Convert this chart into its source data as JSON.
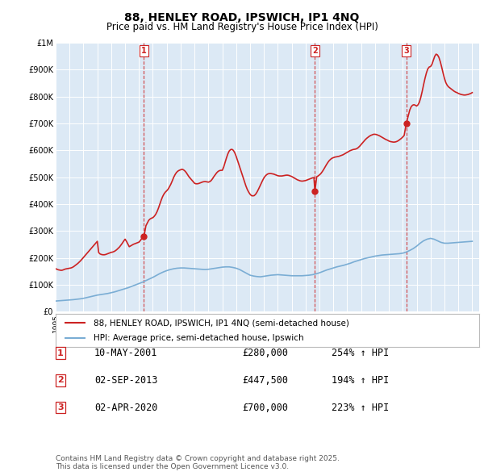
{
  "title": "88, HENLEY ROAD, IPSWICH, IP1 4NQ",
  "subtitle": "Price paid vs. HM Land Registry's House Price Index (HPI)",
  "legend_line1": "88, HENLEY ROAD, IPSWICH, IP1 4NQ (semi-detached house)",
  "legend_line2": "HPI: Average price, semi-detached house, Ipswich",
  "footer": "Contains HM Land Registry data © Crown copyright and database right 2025.\nThis data is licensed under the Open Government Licence v3.0.",
  "transactions": [
    {
      "num": 1,
      "date": "10-MAY-2001",
      "x": 2001.36,
      "price": 280000,
      "label": "254% ↑ HPI"
    },
    {
      "num": 2,
      "date": "02-SEP-2013",
      "x": 2013.67,
      "price": 447500,
      "label": "194% ↑ HPI"
    },
    {
      "num": 3,
      "date": "02-APR-2020",
      "x": 2020.25,
      "price": 700000,
      "label": "223% ↑ HPI"
    }
  ],
  "hpi_line_color": "#7aadd4",
  "price_line_color": "#cc2222",
  "dashed_vline_color": "#cc2222",
  "plot_bg_color": "#dce9f5",
  "ylim": [
    0,
    1000000
  ],
  "xlim_start": 1995,
  "xlim_end": 2025.5,
  "hpi_data_x": [
    1995.0,
    1995.25,
    1995.5,
    1995.75,
    1996.0,
    1996.25,
    1996.5,
    1996.75,
    1997.0,
    1997.25,
    1997.5,
    1997.75,
    1998.0,
    1998.25,
    1998.5,
    1998.75,
    1999.0,
    1999.25,
    1999.5,
    1999.75,
    2000.0,
    2000.25,
    2000.5,
    2000.75,
    2001.0,
    2001.25,
    2001.5,
    2001.75,
    2002.0,
    2002.25,
    2002.5,
    2002.75,
    2003.0,
    2003.25,
    2003.5,
    2003.75,
    2004.0,
    2004.25,
    2004.5,
    2004.75,
    2005.0,
    2005.25,
    2005.5,
    2005.75,
    2006.0,
    2006.25,
    2006.5,
    2006.75,
    2007.0,
    2007.25,
    2007.5,
    2007.75,
    2008.0,
    2008.25,
    2008.5,
    2008.75,
    2009.0,
    2009.25,
    2009.5,
    2009.75,
    2010.0,
    2010.25,
    2010.5,
    2010.75,
    2011.0,
    2011.25,
    2011.5,
    2011.75,
    2012.0,
    2012.25,
    2012.5,
    2012.75,
    2013.0,
    2013.25,
    2013.5,
    2013.75,
    2014.0,
    2014.25,
    2014.5,
    2014.75,
    2015.0,
    2015.25,
    2015.5,
    2015.75,
    2016.0,
    2016.25,
    2016.5,
    2016.75,
    2017.0,
    2017.25,
    2017.5,
    2017.75,
    2018.0,
    2018.25,
    2018.5,
    2018.75,
    2019.0,
    2019.25,
    2019.5,
    2019.75,
    2020.0,
    2020.25,
    2020.5,
    2020.75,
    2021.0,
    2021.25,
    2021.5,
    2021.75,
    2022.0,
    2022.25,
    2022.5,
    2022.75,
    2023.0,
    2023.25,
    2023.5,
    2023.75,
    2024.0,
    2024.25,
    2024.5,
    2024.75,
    2025.0
  ],
  "hpi_data_y": [
    40000,
    41000,
    42000,
    43000,
    44000,
    45000,
    46500,
    48000,
    50000,
    53000,
    56000,
    59000,
    62000,
    64000,
    66000,
    68000,
    71000,
    74000,
    78000,
    82000,
    86000,
    90000,
    95000,
    100000,
    105000,
    110000,
    116000,
    122000,
    128000,
    135000,
    142000,
    148000,
    153000,
    157000,
    160000,
    162000,
    163000,
    163000,
    162000,
    161000,
    160000,
    159000,
    158000,
    157000,
    158000,
    160000,
    162000,
    164000,
    166000,
    167000,
    167000,
    165000,
    162000,
    157000,
    150000,
    143000,
    136000,
    133000,
    131000,
    130000,
    132000,
    134000,
    136000,
    137000,
    138000,
    137000,
    136000,
    135000,
    134000,
    134000,
    134000,
    134000,
    135000,
    136000,
    138000,
    141000,
    145000,
    150000,
    155000,
    159000,
    163000,
    167000,
    170000,
    173000,
    177000,
    181000,
    186000,
    190000,
    194000,
    198000,
    201000,
    204000,
    207000,
    209000,
    211000,
    212000,
    213000,
    214000,
    215000,
    216000,
    218000,
    222000,
    228000,
    235000,
    244000,
    255000,
    264000,
    270000,
    273000,
    270000,
    264000,
    258000,
    255000,
    255000,
    256000,
    257000,
    258000,
    259000,
    260000,
    261000,
    262000
  ],
  "price_data_x": [
    1995.0,
    1995.1,
    1995.2,
    1995.3,
    1995.4,
    1995.5,
    1995.6,
    1995.7,
    1995.8,
    1995.9,
    1996.0,
    1996.1,
    1996.2,
    1996.3,
    1996.4,
    1996.5,
    1996.6,
    1996.7,
    1996.8,
    1996.9,
    1997.0,
    1997.1,
    1997.2,
    1997.3,
    1997.4,
    1997.5,
    1997.6,
    1997.7,
    1997.8,
    1997.9,
    1998.0,
    1998.1,
    1998.2,
    1998.3,
    1998.4,
    1998.5,
    1998.6,
    1998.7,
    1998.8,
    1998.9,
    1999.0,
    1999.1,
    1999.2,
    1999.3,
    1999.4,
    1999.5,
    1999.6,
    1999.7,
    1999.8,
    1999.9,
    2000.0,
    2000.1,
    2000.2,
    2000.3,
    2000.4,
    2000.5,
    2000.6,
    2000.7,
    2000.8,
    2000.9,
    2001.0,
    2001.1,
    2001.2,
    2001.36,
    2001.5,
    2001.6,
    2001.7,
    2001.8,
    2001.9,
    2002.0,
    2002.1,
    2002.2,
    2002.3,
    2002.4,
    2002.5,
    2002.6,
    2002.7,
    2002.8,
    2002.9,
    2003.0,
    2003.1,
    2003.2,
    2003.3,
    2003.4,
    2003.5,
    2003.6,
    2003.7,
    2003.8,
    2003.9,
    2004.0,
    2004.1,
    2004.2,
    2004.3,
    2004.4,
    2004.5,
    2004.6,
    2004.7,
    2004.8,
    2004.9,
    2005.0,
    2005.1,
    2005.2,
    2005.3,
    2005.4,
    2005.5,
    2005.6,
    2005.7,
    2005.8,
    2005.9,
    2006.0,
    2006.1,
    2006.2,
    2006.3,
    2006.4,
    2006.5,
    2006.6,
    2006.7,
    2006.8,
    2006.9,
    2007.0,
    2007.1,
    2007.2,
    2007.3,
    2007.4,
    2007.5,
    2007.6,
    2007.7,
    2007.8,
    2007.9,
    2008.0,
    2008.1,
    2008.2,
    2008.3,
    2008.4,
    2008.5,
    2008.6,
    2008.7,
    2008.8,
    2008.9,
    2009.0,
    2009.1,
    2009.2,
    2009.3,
    2009.4,
    2009.5,
    2009.6,
    2009.7,
    2009.8,
    2009.9,
    2010.0,
    2010.1,
    2010.2,
    2010.3,
    2010.4,
    2010.5,
    2010.6,
    2010.7,
    2010.8,
    2010.9,
    2011.0,
    2011.1,
    2011.2,
    2011.3,
    2011.4,
    2011.5,
    2011.6,
    2011.7,
    2011.8,
    2011.9,
    2012.0,
    2012.1,
    2012.2,
    2012.3,
    2012.4,
    2012.5,
    2012.6,
    2012.7,
    2012.8,
    2012.9,
    2013.0,
    2013.1,
    2013.2,
    2013.3,
    2013.4,
    2013.5,
    2013.6,
    2013.67,
    2013.8,
    2013.9,
    2014.0,
    2014.1,
    2014.2,
    2014.3,
    2014.4,
    2014.5,
    2014.6,
    2014.7,
    2014.8,
    2014.9,
    2015.0,
    2015.1,
    2015.2,
    2015.3,
    2015.4,
    2015.5,
    2015.6,
    2015.7,
    2015.8,
    2015.9,
    2016.0,
    2016.1,
    2016.2,
    2016.3,
    2016.4,
    2016.5,
    2016.6,
    2016.7,
    2016.8,
    2016.9,
    2017.0,
    2017.1,
    2017.2,
    2017.3,
    2017.4,
    2017.5,
    2017.6,
    2017.7,
    2017.8,
    2017.9,
    2018.0,
    2018.1,
    2018.2,
    2018.3,
    2018.4,
    2018.5,
    2018.6,
    2018.7,
    2018.8,
    2018.9,
    2019.0,
    2019.1,
    2019.2,
    2019.3,
    2019.4,
    2019.5,
    2019.6,
    2019.7,
    2019.8,
    2019.9,
    2020.0,
    2020.1,
    2020.25,
    2020.4,
    2020.5,
    2020.6,
    2020.7,
    2020.8,
    2020.9,
    2021.0,
    2021.1,
    2021.2,
    2021.3,
    2021.4,
    2021.5,
    2021.6,
    2021.7,
    2021.8,
    2021.9,
    2022.0,
    2022.1,
    2022.2,
    2022.3,
    2022.4,
    2022.5,
    2022.6,
    2022.7,
    2022.8,
    2022.9,
    2023.0,
    2023.1,
    2023.2,
    2023.3,
    2023.4,
    2023.5,
    2023.6,
    2023.7,
    2023.8,
    2023.9,
    2024.0,
    2024.1,
    2024.2,
    2024.3,
    2024.4,
    2024.5,
    2024.6,
    2024.7,
    2024.8,
    2024.9,
    2025.0
  ],
  "price_data_y": [
    160000,
    158000,
    156000,
    155000,
    154000,
    155000,
    157000,
    159000,
    160000,
    161000,
    162000,
    163000,
    165000,
    168000,
    172000,
    176000,
    180000,
    185000,
    190000,
    196000,
    202000,
    208000,
    214000,
    220000,
    226000,
    232000,
    238000,
    244000,
    250000,
    256000,
    262000,
    220000,
    215000,
    213000,
    212000,
    212000,
    213000,
    215000,
    217000,
    219000,
    221000,
    222000,
    224000,
    227000,
    231000,
    236000,
    241000,
    248000,
    255000,
    263000,
    270000,
    262000,
    252000,
    242000,
    245000,
    248000,
    251000,
    253000,
    255000,
    257000,
    259000,
    265000,
    272000,
    280000,
    320000,
    330000,
    340000,
    345000,
    348000,
    350000,
    355000,
    362000,
    372000,
    385000,
    400000,
    415000,
    428000,
    438000,
    445000,
    450000,
    456000,
    465000,
    475000,
    487000,
    500000,
    510000,
    518000,
    523000,
    526000,
    528000,
    530000,
    528000,
    524000,
    518000,
    510000,
    502000,
    496000,
    490000,
    484000,
    478000,
    476000,
    476000,
    477000,
    479000,
    481000,
    483000,
    484000,
    484000,
    483000,
    482000,
    484000,
    488000,
    495000,
    503000,
    510000,
    517000,
    522000,
    525000,
    526000,
    526000,
    538000,
    555000,
    572000,
    587000,
    598000,
    603000,
    604000,
    600000,
    591000,
    578000,
    563000,
    547000,
    531000,
    516000,
    500000,
    484000,
    468000,
    455000,
    445000,
    437000,
    432000,
    431000,
    432000,
    437000,
    445000,
    455000,
    466000,
    477000,
    488000,
    498000,
    505000,
    510000,
    513000,
    514000,
    514000,
    513000,
    512000,
    510000,
    508000,
    506000,
    505000,
    505000,
    505000,
    506000,
    507000,
    508000,
    508000,
    507000,
    505000,
    503000,
    500000,
    497000,
    494000,
    491000,
    489000,
    487000,
    486000,
    486000,
    487000,
    488000,
    490000,
    492000,
    494000,
    496000,
    498000,
    499000,
    447500,
    502000,
    505000,
    509000,
    514000,
    521000,
    529000,
    538000,
    547000,
    555000,
    562000,
    567000,
    571000,
    573000,
    575000,
    576000,
    577000,
    578000,
    580000,
    582000,
    584000,
    587000,
    590000,
    593000,
    596000,
    599000,
    601000,
    603000,
    604000,
    605000,
    607000,
    611000,
    616000,
    622000,
    628000,
    634000,
    640000,
    645000,
    649000,
    653000,
    656000,
    658000,
    660000,
    660000,
    659000,
    657000,
    655000,
    652000,
    649000,
    646000,
    643000,
    640000,
    638000,
    635000,
    633000,
    632000,
    631000,
    631000,
    632000,
    634000,
    637000,
    641000,
    645000,
    650000,
    656000,
    700000,
    730000,
    750000,
    762000,
    768000,
    770000,
    768000,
    765000,
    770000,
    780000,
    798000,
    820000,
    845000,
    868000,
    888000,
    903000,
    910000,
    912000,
    920000,
    935000,
    950000,
    958000,
    955000,
    946000,
    930000,
    910000,
    888000,
    868000,
    852000,
    842000,
    836000,
    832000,
    828000,
    824000,
    820000,
    817000,
    815000,
    812000,
    810000,
    808000,
    807000,
    806000,
    806000,
    807000,
    808000,
    810000,
    812000,
    815000
  ]
}
